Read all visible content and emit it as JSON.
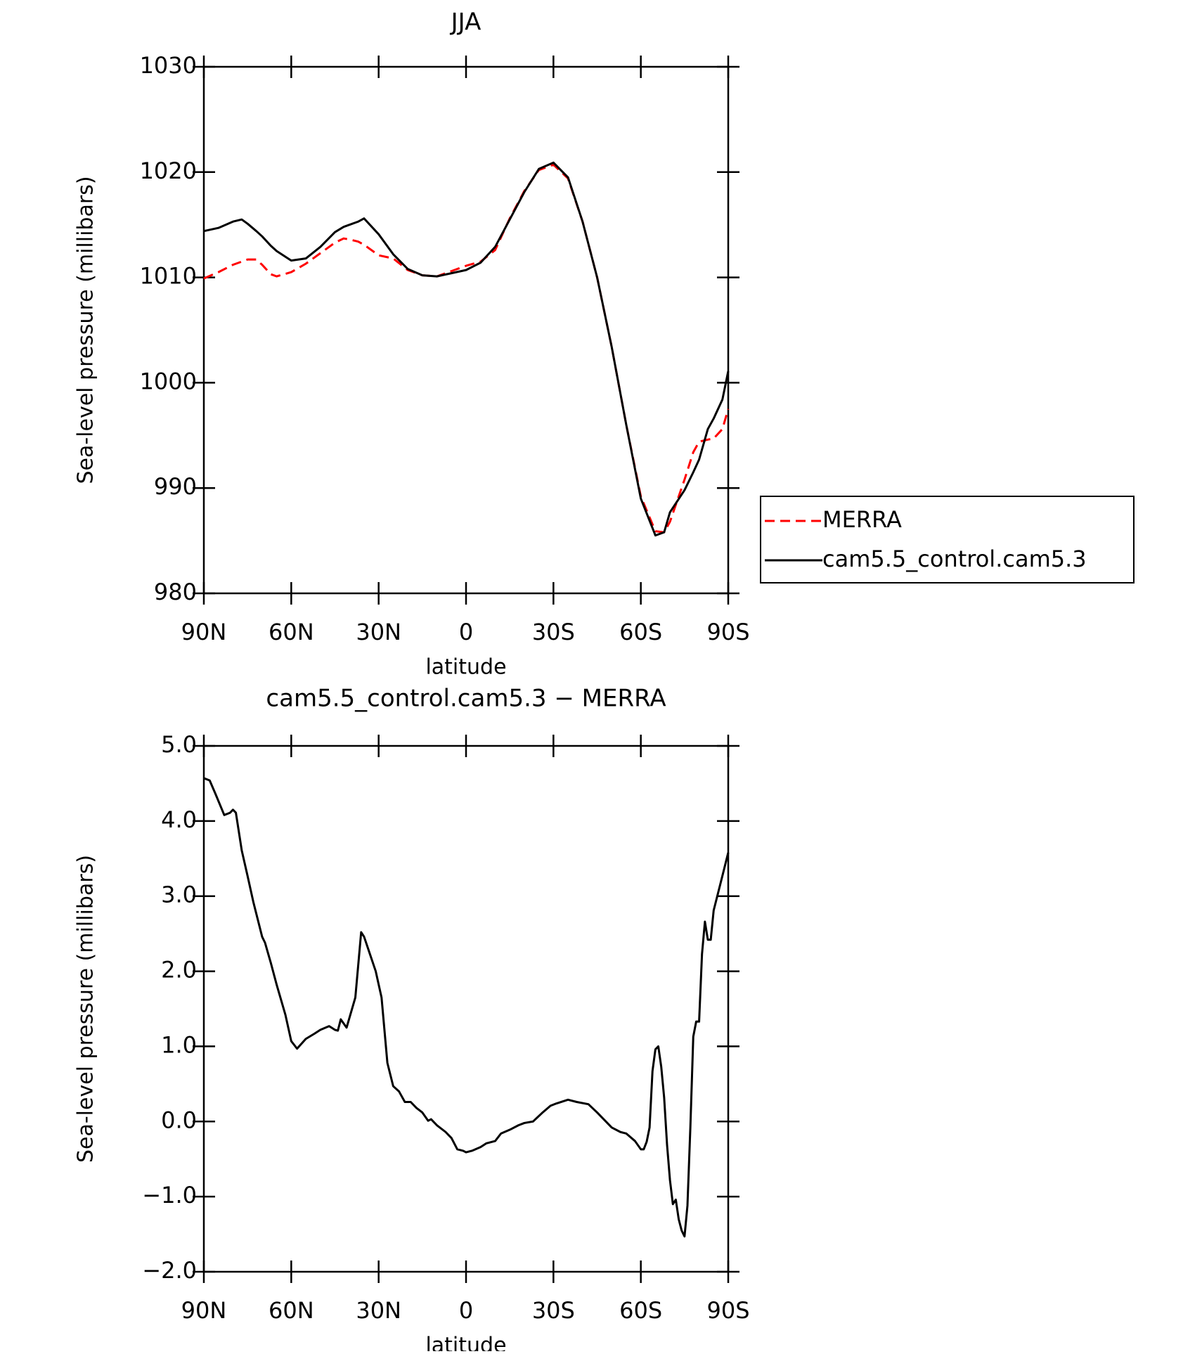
{
  "chart_data": [
    {
      "type": "line",
      "title": "JJA",
      "xlabel": "latitude",
      "ylabel": "Sea-level pressure (millibars)",
      "x": [
        90,
        85,
        80,
        77,
        75,
        72,
        70,
        67,
        65,
        60,
        55,
        50,
        45,
        42,
        40,
        37,
        35,
        30,
        25,
        20,
        15,
        10,
        5,
        0,
        -5,
        -10,
        -15,
        -20,
        -25,
        -30,
        -35,
        -40,
        -45,
        -50,
        -55,
        -60,
        -65,
        -68,
        -70,
        -75,
        -78,
        -80,
        -83,
        -85,
        -88,
        -90
      ],
      "series": [
        {
          "name": "MERRA",
          "color": "#ff0000",
          "line_style": "dashed",
          "values": [
            1009.9,
            1010.5,
            1011.2,
            1011.5,
            1011.7,
            1011.7,
            1011.2,
            1010.3,
            1010.1,
            1010.5,
            1011.3,
            1012.3,
            1013.3,
            1013.7,
            1013.6,
            1013.4,
            1013.1,
            1012.1,
            1011.8,
            1010.7,
            1010.2,
            1010.1,
            1010.6,
            1011.1,
            1011.5,
            1012.6,
            1015.6,
            1018.2,
            1020.2,
            1020.7,
            1019.4,
            1015.3,
            1010.0,
            1003.4,
            996.0,
            989.2,
            985.9,
            985.8,
            986.8,
            990.8,
            993.4,
            994.4,
            994.6,
            994.7,
            995.6,
            997.5
          ]
        },
        {
          "name": "cam5.5_control.cam5.3",
          "color": "#000000",
          "line_style": "solid",
          "values": [
            1014.4,
            1014.7,
            1015.3,
            1015.5,
            1015.1,
            1014.4,
            1013.9,
            1013.0,
            1012.5,
            1011.6,
            1011.8,
            1012.9,
            1014.3,
            1014.8,
            1015.0,
            1015.3,
            1015.6,
            1014.1,
            1012.2,
            1010.8,
            1010.2,
            1010.1,
            1010.4,
            1010.7,
            1011.4,
            1012.9,
            1015.5,
            1018.1,
            1020.3,
            1020.9,
            1019.5,
            1015.3,
            1010.0,
            1003.4,
            996.0,
            989.0,
            985.5,
            985.8,
            987.7,
            989.8,
            991.5,
            992.7,
            995.6,
            996.6,
            998.4,
            1001.1
          ]
        }
      ],
      "xlim": [
        90,
        -90
      ],
      "xticks": [
        {
          "value": 90,
          "label": "90N"
        },
        {
          "value": 60,
          "label": "60N"
        },
        {
          "value": 30,
          "label": "30N"
        },
        0,
        {
          "value": -30,
          "label": "30S"
        },
        {
          "value": -60,
          "label": "60S"
        },
        {
          "value": -90,
          "label": "90S"
        }
      ],
      "ylim": [
        980,
        1030
      ],
      "yticks": [
        980,
        990,
        1000,
        1010,
        1020,
        1030
      ],
      "legend": "right"
    },
    {
      "type": "line",
      "title": "cam5.5_control.cam5.3 − MERRA",
      "xlabel": "latitude",
      "ylabel": "Sea-level pressure (millibars)",
      "x": [
        90,
        88,
        86,
        83,
        81,
        80,
        79,
        77,
        75,
        73,
        70,
        69,
        67,
        65,
        62,
        60,
        58,
        55,
        52,
        50,
        47,
        45,
        44,
        43,
        41,
        38,
        36,
        35,
        33,
        31,
        29,
        27,
        25,
        23,
        21,
        19,
        17,
        15,
        13,
        12,
        10,
        7,
        5,
        3,
        1,
        0,
        -2,
        -5,
        -7,
        -10,
        -12,
        -15,
        -18,
        -20,
        -23,
        -26,
        -29,
        -31,
        -35,
        -38,
        -42,
        -45,
        -50,
        -53,
        -55,
        -58,
        -60,
        -61,
        -62,
        -63,
        -64,
        -65,
        -66,
        -67,
        -68,
        -69,
        -70,
        -71,
        -72,
        -73,
        -74,
        -75,
        -76,
        -77,
        -78,
        -79,
        -80,
        -81,
        -82,
        -83,
        -84,
        -85,
        -88,
        -90
      ],
      "values": [
        4.57,
        4.54,
        4.36,
        4.08,
        4.11,
        4.15,
        4.11,
        3.61,
        3.27,
        2.92,
        2.46,
        2.38,
        2.11,
        1.82,
        1.42,
        1.07,
        0.97,
        1.1,
        1.17,
        1.22,
        1.27,
        1.22,
        1.21,
        1.36,
        1.25,
        1.65,
        2.52,
        2.46,
        2.23,
        2.0,
        1.65,
        0.78,
        0.47,
        0.4,
        0.26,
        0.26,
        0.18,
        0.12,
        0.01,
        0.03,
        -0.05,
        -0.14,
        -0.22,
        -0.37,
        -0.39,
        -0.41,
        -0.39,
        -0.34,
        -0.29,
        -0.26,
        -0.16,
        -0.11,
        -0.05,
        -0.02,
        0.0,
        0.11,
        0.21,
        0.24,
        0.29,
        0.26,
        0.23,
        0.12,
        -0.08,
        -0.14,
        -0.16,
        -0.26,
        -0.37,
        -0.37,
        -0.27,
        -0.08,
        0.67,
        0.96,
        1.0,
        0.73,
        0.32,
        -0.31,
        -0.78,
        -1.1,
        -1.04,
        -1.3,
        -1.45,
        -1.53,
        -1.12,
        -0.08,
        1.13,
        1.33,
        1.33,
        2.23,
        2.66,
        2.42,
        2.42,
        2.81,
        3.27,
        3.58
      ],
      "color": "#000000",
      "xlim": [
        90,
        -90
      ],
      "xticks": [
        {
          "value": 90,
          "label": "90N"
        },
        {
          "value": 60,
          "label": "60N"
        },
        {
          "value": 30,
          "label": "30N"
        },
        0,
        {
          "value": -30,
          "label": "30S"
        },
        {
          "value": -60,
          "label": "60S"
        },
        {
          "value": -90,
          "label": "90S"
        }
      ],
      "ylim": [
        -2,
        5
      ],
      "yticks": [
        {
          "value": -2,
          "label": "−2.0"
        },
        {
          "value": -1,
          "label": "−1.0"
        },
        {
          "value": 0,
          "label": "0.0"
        },
        {
          "value": 1,
          "label": "1.0"
        },
        {
          "value": 2,
          "label": "2.0"
        },
        {
          "value": 3,
          "label": "3.0"
        },
        {
          "value": 4,
          "label": "4.0"
        },
        {
          "value": 5,
          "label": "5.0"
        }
      ]
    }
  ]
}
